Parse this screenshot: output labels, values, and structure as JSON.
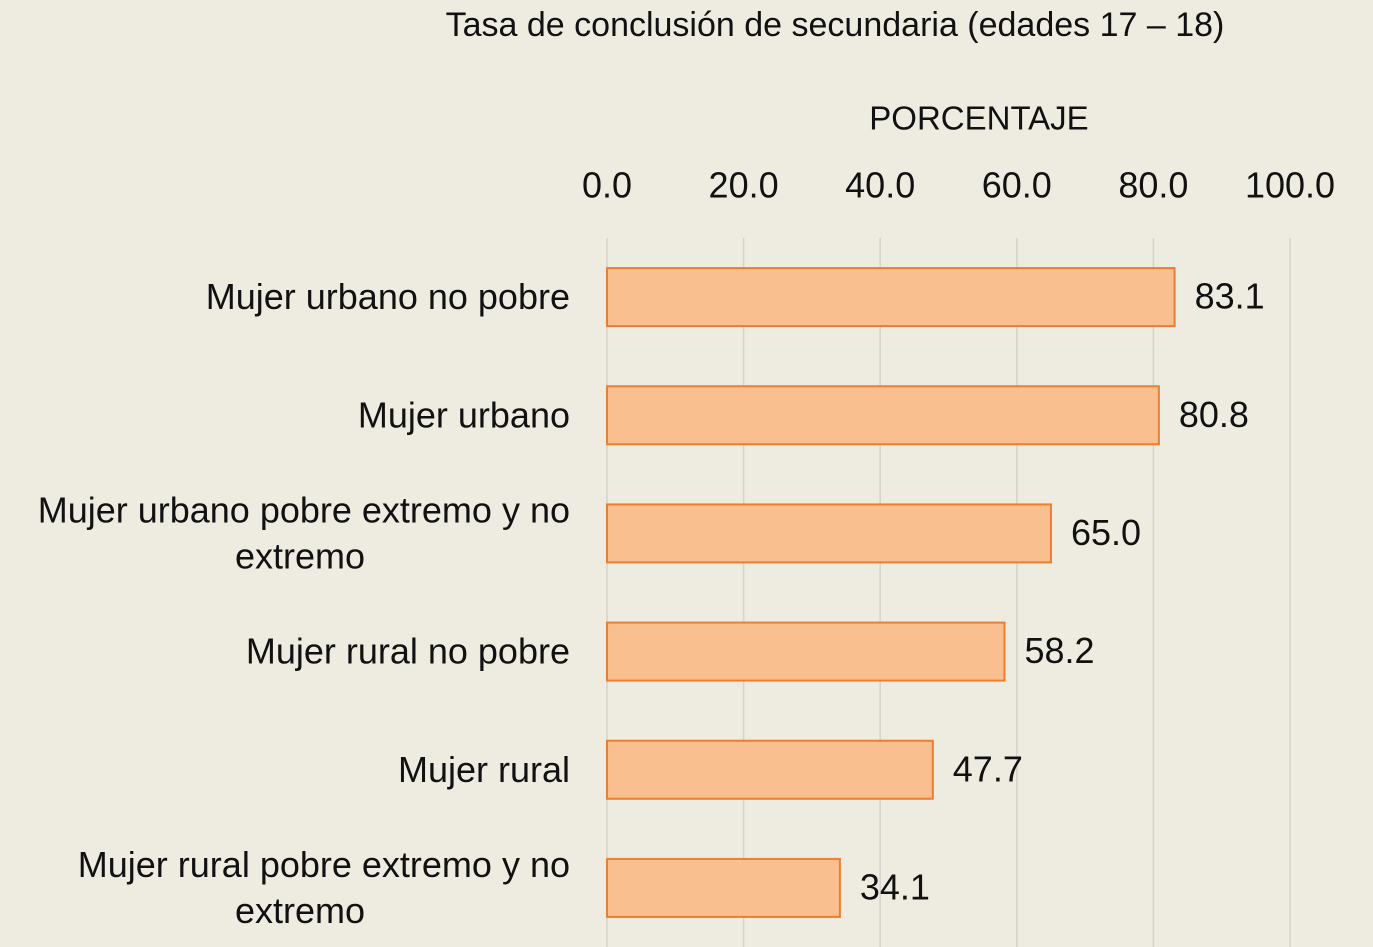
{
  "chart_data": {
    "type": "barh",
    "title": "Tasa de conclusión de secundaria (edades 17 – 18)",
    "x_label": "PORCENTAJE",
    "categories": [
      "Mujer urbano no pobre",
      "Mujer urbano",
      "Mujer urbano pobre extremo y no extremo",
      "Mujer rural no pobre",
      "Mujer rural",
      "Mujer rural pobre extremo y no extremo"
    ],
    "values": [
      83.1,
      80.8,
      65.0,
      58.2,
      47.7,
      34.1
    ],
    "value_labels": [
      "83.1",
      "80.8",
      "65.0",
      "58.2",
      "47.7",
      "34.1"
    ],
    "color": "#f9bf8f",
    "edge_color": "#ed7d31",
    "xlim": [
      0,
      100
    ],
    "xticks": [
      {
        "value": 0,
        "label": "0.0"
      },
      {
        "value": 20,
        "label": "20.0"
      },
      {
        "value": 40,
        "label": "40.0"
      },
      {
        "value": 60,
        "label": "60.0"
      },
      {
        "value": 80,
        "label": "80.0"
      },
      {
        "value": 100,
        "label": "100.0"
      }
    ],
    "grid": true
  }
}
